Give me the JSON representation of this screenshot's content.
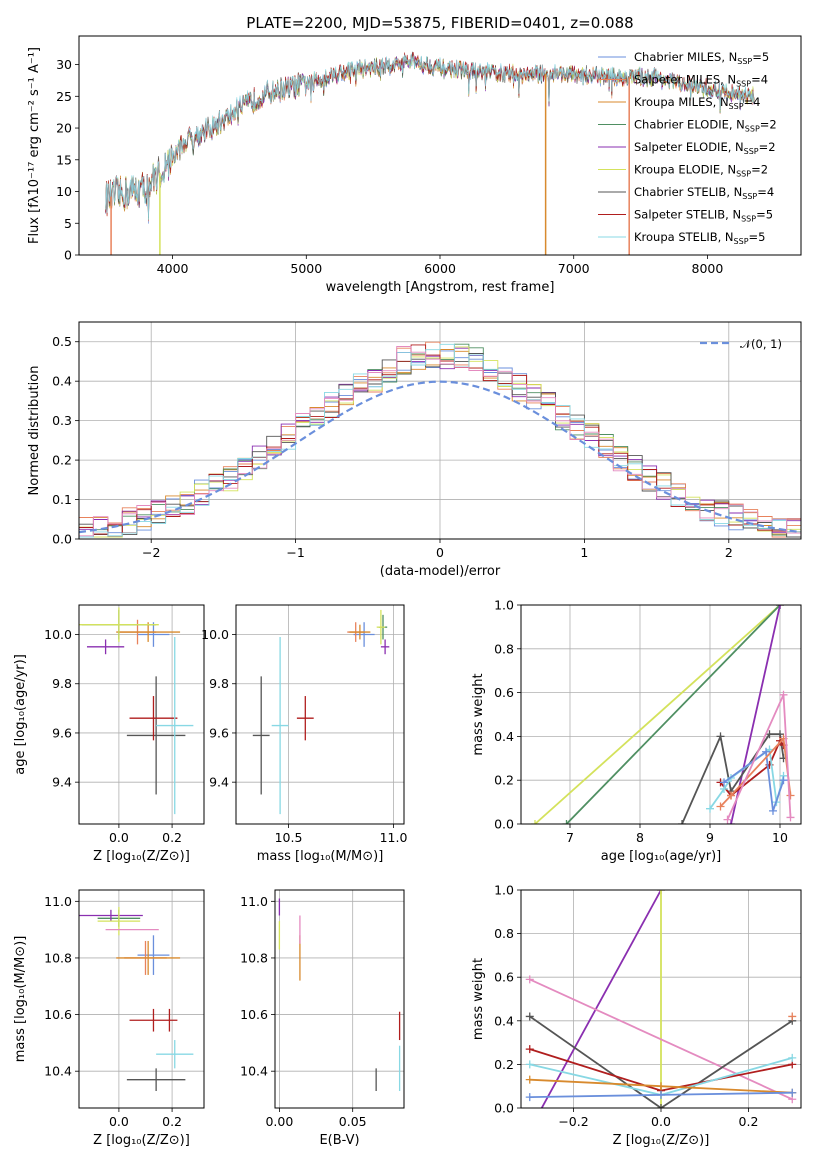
{
  "title": "PLATE=2200, MJD=53875, FIBERID=0401, z=0.088",
  "colors": {
    "chabrier_miles": "#6a8fdc",
    "salpeter_miles": "#e8825c",
    "kroupa_miles": "#d88a2e",
    "chabrier_elodie": "#4f8f62",
    "salpeter_elodie": "#8a2fb0",
    "kroupa_elodie": "#d4e25c",
    "chabrier_stelib": "#555555",
    "salpeter_stelib": "#b01e1e",
    "kroupa_stelib": "#88d8e4",
    "pink": "#e48bc0"
  },
  "chart_data": [
    {
      "id": "spectrum",
      "type": "line",
      "title": "PLATE=2200, MJD=53875, FIBERID=0401, z=0.088",
      "xlabel": "wavelength [Angstrom, rest frame]",
      "ylabel": "Flux [fλ10⁻¹⁷ erg cm⁻² s⁻¹ A⁻¹]",
      "xlim": [
        3300,
        8700
      ],
      "ylim": [
        0,
        34.5
      ],
      "xticks": [
        4000,
        5000,
        6000,
        7000,
        8000
      ],
      "yticks": [
        0,
        5,
        10,
        15,
        20,
        25,
        30
      ],
      "legend": "upper right",
      "legend_entries": [
        {
          "label": "Chabrier MILES, N_SSP=5",
          "color": "#6a8fdc"
        },
        {
          "label": "Salpeter MILES, N_SSP=4",
          "color": "#e8825c"
        },
        {
          "label": "Kroupa MILES, N_SSP=4",
          "color": "#d88a2e"
        },
        {
          "label": "Chabrier ELODIE, N_SSP=2",
          "color": "#4f8f62"
        },
        {
          "label": "Salpeter ELODIE, N_SSP=2",
          "color": "#8a2fb0"
        },
        {
          "label": "Kroupa ELODIE, N_SSP=2",
          "color": "#d4e25c"
        },
        {
          "label": "Chabrier STELIB, N_SSP=4",
          "color": "#555555"
        },
        {
          "label": "Salpeter STELIB, N_SSP=5",
          "color": "#b01e1e"
        },
        {
          "label": "Kroupa STELIB, N_SSP=5",
          "color": "#88d8e4"
        }
      ],
      "continuum_points": [
        [
          3500,
          9
        ],
        [
          3800,
          10.5
        ],
        [
          3950,
          14
        ],
        [
          4100,
          18
        ],
        [
          4300,
          20
        ],
        [
          4500,
          23
        ],
        [
          4700,
          25.5
        ],
        [
          5000,
          27
        ],
        [
          5300,
          29
        ],
        [
          5500,
          29.5
        ],
        [
          5800,
          30.5
        ],
        [
          6000,
          29.5
        ],
        [
          6200,
          29
        ],
        [
          6500,
          28.5
        ],
        [
          6800,
          28.5
        ],
        [
          7000,
          28.5
        ],
        [
          7300,
          28
        ],
        [
          7600,
          28
        ],
        [
          7900,
          26.5
        ],
        [
          8200,
          25.5
        ],
        [
          8350,
          25
        ]
      ],
      "drops": [
        {
          "x": 3540,
          "color": "#e8825c"
        },
        {
          "x": 3905,
          "color": "#d4e25c"
        },
        {
          "x": 6790,
          "color": "#d88a2e"
        },
        {
          "x": 7415,
          "color": "#e8825c"
        }
      ]
    },
    {
      "id": "residual-histogram",
      "type": "histogram",
      "xlabel": "(data-model)/error",
      "ylabel": "Normed distribution",
      "xlim": [
        -2.5,
        2.5
      ],
      "ylim": [
        0,
        0.55
      ],
      "xticks": [
        -2,
        -1,
        0,
        1,
        2
      ],
      "yticks": [
        0.0,
        0.1,
        0.2,
        0.3,
        0.4,
        0.5
      ],
      "legend": "upper right",
      "legend_entries": [
        {
          "label": "𝒩(0, 1)",
          "color": "#6a8fdc",
          "style": "dashed"
        }
      ],
      "bin_width": 0.1
    },
    {
      "id": "age-vs-metallicity",
      "type": "scatter",
      "xlabel": "Z [log₁₀(Z/Z⊙)]",
      "ylabel": "age  [log₁₀(age/yr)]",
      "xlim": [
        -0.15,
        0.32
      ],
      "ylim": [
        9.23,
        10.12
      ],
      "xticks": [
        0.0,
        0.2
      ],
      "yticks": [
        9.4,
        9.6,
        9.8,
        10.0
      ],
      "points": [
        {
          "series": "Chabrier MILES",
          "x": 0.13,
          "y": 10.0,
          "xerr": 0.06,
          "yerr": 0.05,
          "color": "#6a8fdc"
        },
        {
          "series": "Salpeter MILES",
          "x": 0.07,
          "y": 10.01,
          "xerr": 0.07,
          "yerr": 0.05,
          "color": "#e8825c"
        },
        {
          "series": "Kroupa MILES",
          "x": 0.11,
          "y": 10.01,
          "xerr": 0.12,
          "yerr": 0.04,
          "color": "#d88a2e"
        },
        {
          "series": "Chabrier ELODIE",
          "x": 0.0,
          "y": 10.04,
          "xerr": 0.14,
          "yerr": 0.06,
          "color": "#4f8f62"
        },
        {
          "series": "Salpeter ELODIE",
          "x": -0.05,
          "y": 9.95,
          "xerr": 0.07,
          "yerr": 0.03,
          "color": "#8a2fb0"
        },
        {
          "series": "Kroupa ELODIE",
          "x": 0.0,
          "y": 10.04,
          "xerr": 0.15,
          "yerr": 0.07,
          "color": "#d4e25c"
        },
        {
          "series": "Chabrier STELIB",
          "x": 0.14,
          "y": 9.59,
          "xerr": 0.11,
          "yerr": 0.24,
          "color": "#555555"
        },
        {
          "series": "Salpeter STELIB",
          "x": 0.13,
          "y": 9.66,
          "xerr": 0.09,
          "yerr": 0.09,
          "color": "#b01e1e"
        },
        {
          "series": "Kroupa STELIB",
          "x": 0.21,
          "y": 9.63,
          "xerr": 0.07,
          "yerr": 0.36,
          "color": "#88d8e4"
        }
      ]
    },
    {
      "id": "age-vs-mass",
      "type": "scatter",
      "xlabel": "mass [log₁₀(M/M⊙)]",
      "ylabel": "",
      "xlim": [
        10.25,
        11.05
      ],
      "ylim": [
        9.23,
        10.12
      ],
      "xticks": [
        10.5,
        11.0
      ],
      "yticks": [
        9.4,
        9.6,
        9.8,
        10.0
      ],
      "points": [
        {
          "series": "Chabrier MILES",
          "x": 10.86,
          "y": 10.0,
          "xerr": 0.05,
          "yerr": 0.05,
          "color": "#6a8fdc"
        },
        {
          "series": "Salpeter MILES",
          "x": 10.82,
          "y": 10.01,
          "xerr": 0.04,
          "yerr": 0.04,
          "color": "#e8825c"
        },
        {
          "series": "Kroupa MILES",
          "x": 10.84,
          "y": 10.01,
          "xerr": 0.05,
          "yerr": 0.03,
          "color": "#d88a2e"
        },
        {
          "series": "Chabrier ELODIE",
          "x": 10.95,
          "y": 10.03,
          "xerr": 0.02,
          "yerr": 0.05,
          "color": "#4f8f62"
        },
        {
          "series": "Salpeter ELODIE",
          "x": 10.96,
          "y": 9.95,
          "xerr": 0.02,
          "yerr": 0.03,
          "color": "#8a2fb0"
        },
        {
          "series": "Kroupa ELODIE",
          "x": 10.94,
          "y": 10.03,
          "xerr": 0.02,
          "yerr": 0.07,
          "color": "#d4e25c"
        },
        {
          "series": "Chabrier STELIB",
          "x": 10.37,
          "y": 9.59,
          "xerr": 0.04,
          "yerr": 0.24,
          "color": "#555555"
        },
        {
          "series": "Salpeter STELIB",
          "x": 10.58,
          "y": 9.66,
          "xerr": 0.04,
          "yerr": 0.09,
          "color": "#b01e1e"
        },
        {
          "series": "Kroupa STELIB",
          "x": 10.46,
          "y": 9.63,
          "xerr": 0.04,
          "yerr": 0.36,
          "color": "#88d8e4"
        }
      ]
    },
    {
      "id": "mass-weight-vs-age",
      "type": "line",
      "xlabel": "age  [log₁₀(age/yr)]",
      "ylabel": "mass weight",
      "xlim": [
        6.3,
        10.3
      ],
      "ylim": [
        0,
        1.0
      ],
      "xticks": [
        7,
        8,
        9,
        10
      ],
      "yticks": [
        0.0,
        0.2,
        0.4,
        0.6,
        0.8,
        1.0
      ],
      "series": [
        {
          "name": "Kroupa ELODIE",
          "color": "#d4e25c",
          "x": [
            6.5,
            10.0
          ],
          "y": [
            0.0,
            1.0
          ]
        },
        {
          "name": "Chabrier ELODIE",
          "color": "#4f8f62",
          "x": [
            6.95,
            10.0
          ],
          "y": [
            0.0,
            1.0
          ]
        },
        {
          "name": "Salpeter ELODIE",
          "color": "#8a2fb0",
          "x": [
            9.3,
            10.0
          ],
          "y": [
            0.0,
            1.0
          ]
        },
        {
          "name": "Chabrier STELIB",
          "color": "#555555",
          "x": [
            8.6,
            9.15,
            9.3,
            9.85,
            10.0,
            10.05
          ],
          "y": [
            0.0,
            0.4,
            0.15,
            0.41,
            0.41,
            0.3
          ]
        },
        {
          "name": "Salpeter STELIB",
          "color": "#b01e1e",
          "x": [
            9.15,
            9.3,
            9.85,
            10.0,
            10.05
          ],
          "y": [
            0.19,
            0.13,
            0.27,
            0.38,
            0.36
          ]
        },
        {
          "name": "Kroupa STELIB",
          "color": "#88d8e4",
          "x": [
            9.0,
            9.2,
            9.3,
            9.85,
            9.95,
            10.05
          ],
          "y": [
            0.07,
            0.16,
            0.21,
            0.34,
            0.1,
            0.22
          ]
        },
        {
          "name": "Chabrier MILES",
          "color": "#6a8fdc",
          "x": [
            9.2,
            9.8,
            9.9,
            10.05
          ],
          "y": [
            0.19,
            0.33,
            0.06,
            0.2
          ]
        },
        {
          "name": "Salpeter MILES",
          "color": "#e8825c",
          "x": [
            9.15,
            9.3,
            10.05,
            10.15
          ],
          "y": [
            0.08,
            0.13,
            0.39,
            0.13
          ]
        },
        {
          "name": "Kroupa MILES",
          "color": "#e48bc0",
          "x": [
            9.25,
            10.05,
            10.15
          ],
          "y": [
            0.02,
            0.59,
            0.03
          ]
        }
      ]
    },
    {
      "id": "mass-vs-metallicity",
      "type": "scatter",
      "xlabel": "Z [log₁₀(Z/Z⊙)]",
      "ylabel": "mass [log₁₀(M/M⊙)]",
      "xlim": [
        -0.15,
        0.32
      ],
      "ylim": [
        10.27,
        11.04
      ],
      "xticks": [
        0.0,
        0.2
      ],
      "yticks": [
        10.4,
        10.6,
        10.8,
        11.0
      ],
      "points": [
        {
          "series": "Chabrier MILES",
          "x": 0.13,
          "y": 10.81,
          "xerr": 0.06,
          "yerr": 0.07,
          "color": "#6a8fdc"
        },
        {
          "series": "Salpeter MILES",
          "x": 0.1,
          "y": 10.8,
          "xerr": 0.08,
          "yerr": 0.06,
          "color": "#e8825c"
        },
        {
          "series": "Kroupa MILES",
          "x": 0.11,
          "y": 10.8,
          "xerr": 0.12,
          "yerr": 0.06,
          "color": "#d88a2e"
        },
        {
          "series": "Chabrier ELODIE",
          "x": 0.0,
          "y": 10.94,
          "xerr": 0.08,
          "yerr": 0.03,
          "color": "#4f8f62"
        },
        {
          "series": "Salpeter ELODIE",
          "x": -0.03,
          "y": 10.95,
          "xerr": 0.12,
          "yerr": 0.02,
          "color": "#8a2fb0"
        },
        {
          "series": "Kroupa ELODIE",
          "x": 0.0,
          "y": 10.93,
          "xerr": 0.08,
          "yerr": 0.05,
          "color": "#d4e25c"
        },
        {
          "series": "Chabrier STELIB",
          "x": 0.14,
          "y": 10.37,
          "xerr": 0.11,
          "yerr": 0.04,
          "color": "#555555"
        },
        {
          "series": "Salpeter STELIB",
          "x": 0.13,
          "y": 10.58,
          "xerr": 0.09,
          "yerr": 0.04,
          "color": "#b01e1e"
        },
        {
          "series": "Kroupa STELIB",
          "x": 0.21,
          "y": 10.46,
          "xerr": 0.07,
          "yerr": 0.05,
          "color": "#88d8e4"
        },
        {
          "series": "Salpeter STELIB",
          "x": 0.19,
          "y": 10.58,
          "xerr": 0.0,
          "yerr": 0.04,
          "color": "#b01e1e"
        },
        {
          "series": "Chabrier MILES",
          "x": 0.05,
          "y": 10.9,
          "xerr": 0.1,
          "yerr": 0.0,
          "color": "#e48bc0"
        }
      ]
    },
    {
      "id": "mass-vs-extinction",
      "type": "scatter",
      "xlabel": "E(B-V)",
      "ylabel": "",
      "xlim": [
        -0.003,
        0.085
      ],
      "ylim": [
        10.27,
        11.04
      ],
      "xticks": [
        0.0,
        0.05
      ],
      "yticks": [
        10.4,
        10.6,
        10.8,
        11.0
      ],
      "points": [
        {
          "series": "Salpeter ELODIE",
          "x": 0.0,
          "y": 10.98,
          "xerr": 0,
          "yerr": 0.03,
          "color": "#8a2fb0"
        },
        {
          "series": "Kroupa ELODIE",
          "x": 0.0,
          "y": 10.88,
          "xerr": 0,
          "yerr": 0.05,
          "color": "#d4e25c"
        },
        {
          "series": "Kroupa MILES",
          "x": 0.014,
          "y": 10.8,
          "xerr": 0,
          "yerr": 0.08,
          "color": "#d88a2e"
        },
        {
          "series": "Salpeter MILES",
          "x": 0.014,
          "y": 10.9,
          "xerr": 0,
          "yerr": 0.05,
          "color": "#e48bc0"
        },
        {
          "series": "Chabrier STELIB",
          "x": 0.066,
          "y": 10.37,
          "xerr": 0,
          "yerr": 0.04,
          "color": "#555555"
        },
        {
          "series": "Salpeter STELIB",
          "x": 0.082,
          "y": 10.56,
          "xerr": 0,
          "yerr": 0.05,
          "color": "#b01e1e"
        },
        {
          "series": "Kroupa STELIB",
          "x": 0.082,
          "y": 10.41,
          "xerr": 0,
          "yerr": 0.08,
          "color": "#88d8e4"
        }
      ]
    },
    {
      "id": "mass-weight-vs-metallicity",
      "type": "line",
      "xlabel": "Z [log₁₀(Z/Z⊙)]",
      "ylabel": "mass weight",
      "xlim": [
        -0.32,
        0.32
      ],
      "ylim": [
        0,
        1.0
      ],
      "xticks": [
        -0.2,
        0.0,
        0.2
      ],
      "yticks": [
        0.0,
        0.2,
        0.4,
        0.6,
        0.8,
        1.0
      ],
      "series": [
        {
          "name": "Salpeter ELODIE",
          "color": "#8a2fb0",
          "x": [
            -0.3,
            0.0
          ],
          "y": [
            -0.1,
            1.0
          ]
        },
        {
          "name": "Kroupa ELODIE",
          "color": "#d4e25c",
          "x": [
            0.0,
            0.0
          ],
          "y": [
            0.0,
            1.0
          ]
        },
        {
          "name": "Kroupa MILES",
          "color": "#e48bc0",
          "x": [
            -0.3,
            0.3
          ],
          "y": [
            0.59,
            0.04
          ]
        },
        {
          "name": "Chabrier STELIB",
          "color": "#555555",
          "x": [
            -0.3,
            0.0,
            0.3
          ],
          "y": [
            0.42,
            0.0,
            0.4
          ]
        },
        {
          "name": "Salpeter STELIB",
          "color": "#b01e1e",
          "x": [
            -0.3,
            0.0,
            0.3
          ],
          "y": [
            0.27,
            0.08,
            0.2
          ]
        },
        {
          "name": "Kroupa STELIB",
          "color": "#88d8e4",
          "x": [
            -0.3,
            0.0,
            0.3
          ],
          "y": [
            0.2,
            0.06,
            0.23
          ]
        },
        {
          "name": "Salpeter MILES",
          "color": "#d88a2e",
          "x": [
            -0.3,
            0.0,
            0.3
          ],
          "y": [
            0.13,
            0.1,
            0.07
          ]
        },
        {
          "name": "Chabrier MILES",
          "color": "#6a8fdc",
          "x": [
            -0.3,
            0.0,
            0.3
          ],
          "y": [
            0.05,
            0.06,
            0.07
          ]
        },
        {
          "name": "Salpeter MILES",
          "color": "#e8825c",
          "x": [
            0.3
          ],
          "y": [
            0.42
          ]
        }
      ]
    }
  ]
}
